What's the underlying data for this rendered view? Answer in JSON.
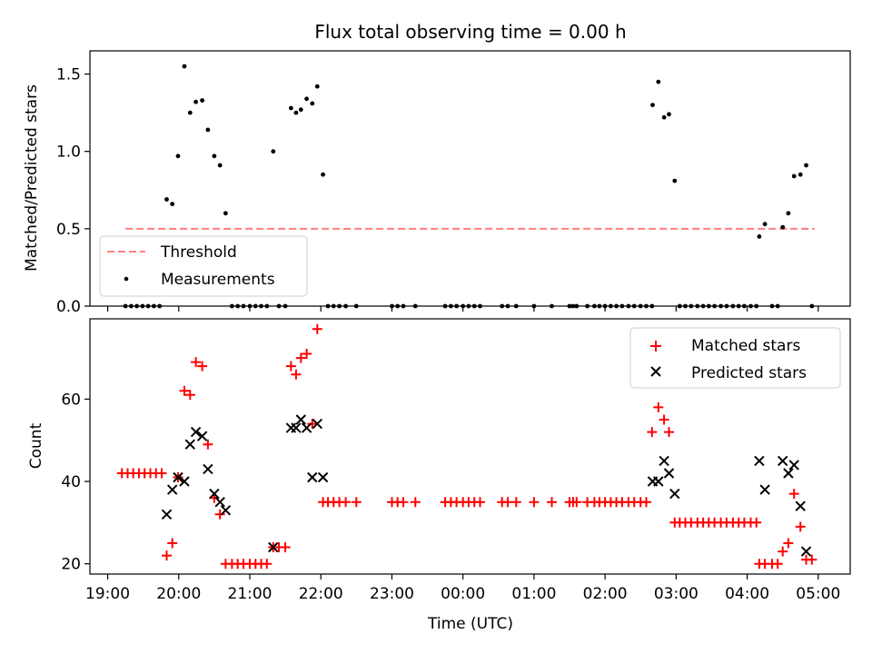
{
  "chart_data": [
    {
      "type": "scatter",
      "title": "Flux total observing time = 0.00 h",
      "xlabel": "",
      "ylabel": "Matched/Predicted stars",
      "x_unit": "hours since 19:00 UTC",
      "xlim": [
        -0.25,
        10.45
      ],
      "ylim": [
        0,
        1.65
      ],
      "yticks": [
        0.0,
        0.5,
        1.0,
        1.5
      ],
      "ytick_labels": [
        "0.0",
        "0.5",
        "1.0",
        "1.5"
      ],
      "threshold": {
        "name": "Threshold",
        "value": 0.5,
        "x_range": [
          0.25,
          9.95
        ],
        "color": "#ff7f7f",
        "style": "dashed"
      },
      "series": [
        {
          "name": "Measurements",
          "color": "#000000",
          "marker": "dot",
          "points": [
            [
              0.25,
              0
            ],
            [
              0.33,
              0
            ],
            [
              0.41,
              0
            ],
            [
              0.49,
              0
            ],
            [
              0.57,
              0
            ],
            [
              0.65,
              0
            ],
            [
              0.73,
              0
            ],
            [
              0.83,
              0.69
            ],
            [
              0.91,
              0.66
            ],
            [
              0.99,
              0.97
            ],
            [
              1.08,
              1.55
            ],
            [
              1.16,
              1.25
            ],
            [
              1.24,
              1.32
            ],
            [
              1.33,
              1.33
            ],
            [
              1.41,
              1.14
            ],
            [
              1.5,
              0.97
            ],
            [
              1.58,
              0.91
            ],
            [
              1.66,
              0.6
            ],
            [
              1.75,
              0
            ],
            [
              1.83,
              0
            ],
            [
              1.91,
              0
            ],
            [
              2.0,
              0
            ],
            [
              2.08,
              0
            ],
            [
              2.16,
              0
            ],
            [
              2.24,
              0
            ],
            [
              2.33,
              1.0
            ],
            [
              2.41,
              0
            ],
            [
              2.5,
              0
            ],
            [
              2.58,
              1.28
            ],
            [
              2.65,
              1.25
            ],
            [
              2.72,
              1.27
            ],
            [
              2.8,
              1.34
            ],
            [
              2.88,
              1.31
            ],
            [
              2.95,
              1.42
            ],
            [
              3.03,
              0.85
            ],
            [
              3.1,
              0
            ],
            [
              3.18,
              0
            ],
            [
              3.26,
              0
            ],
            [
              3.35,
              0
            ],
            [
              3.5,
              0
            ],
            [
              4.0,
              0
            ],
            [
              4.08,
              0
            ],
            [
              4.16,
              0
            ],
            [
              4.33,
              0
            ],
            [
              4.75,
              0
            ],
            [
              4.83,
              0
            ],
            [
              4.91,
              0
            ],
            [
              5.0,
              0
            ],
            [
              5.08,
              0
            ],
            [
              5.16,
              0
            ],
            [
              5.24,
              0
            ],
            [
              5.55,
              0
            ],
            [
              5.63,
              0
            ],
            [
              5.75,
              0
            ],
            [
              6.0,
              0
            ],
            [
              6.25,
              0
            ],
            [
              6.5,
              0
            ],
            [
              6.55,
              0
            ],
            [
              6.6,
              0
            ],
            [
              6.75,
              0
            ],
            [
              6.85,
              0
            ],
            [
              6.92,
              0
            ],
            [
              7.0,
              0
            ],
            [
              7.08,
              0
            ],
            [
              7.16,
              0
            ],
            [
              7.24,
              0
            ],
            [
              7.33,
              0
            ],
            [
              7.41,
              0
            ],
            [
              7.5,
              0
            ],
            [
              7.58,
              0
            ],
            [
              7.66,
              0
            ],
            [
              7.67,
              1.3
            ],
            [
              7.75,
              1.45
            ],
            [
              7.83,
              1.22
            ],
            [
              7.9,
              1.24
            ],
            [
              7.98,
              0.81
            ],
            [
              8.05,
              0
            ],
            [
              8.13,
              0
            ],
            [
              8.21,
              0
            ],
            [
              8.3,
              0
            ],
            [
              8.38,
              0
            ],
            [
              8.46,
              0
            ],
            [
              8.54,
              0
            ],
            [
              8.63,
              0
            ],
            [
              8.71,
              0
            ],
            [
              8.8,
              0
            ],
            [
              8.88,
              0
            ],
            [
              8.96,
              0
            ],
            [
              9.05,
              0
            ],
            [
              9.13,
              0
            ],
            [
              9.17,
              0.45
            ],
            [
              9.25,
              0.53
            ],
            [
              9.35,
              0
            ],
            [
              9.43,
              0
            ],
            [
              9.5,
              0.51
            ],
            [
              9.58,
              0.6
            ],
            [
              9.66,
              0.84
            ],
            [
              9.75,
              0.85
            ],
            [
              9.83,
              0.91
            ],
            [
              9.91,
              0
            ]
          ]
        }
      ],
      "legend": {
        "location": "lower-left",
        "entries": [
          "Threshold",
          "Measurements"
        ]
      }
    },
    {
      "type": "scatter",
      "title": "",
      "xlabel": "Time (UTC)",
      "ylabel": "Count",
      "x_unit": "hours since 19:00 UTC",
      "xlim": [
        -0.25,
        10.45
      ],
      "ylim": [
        17.5,
        79.5
      ],
      "yticks": [
        20,
        40,
        60
      ],
      "ytick_labels": [
        "20",
        "40",
        "60"
      ],
      "xticks": [
        0,
        1,
        2,
        3,
        4,
        5,
        6,
        7,
        8,
        9,
        10
      ],
      "xtick_labels": [
        "19:00",
        "20:00",
        "21:00",
        "22:00",
        "23:00",
        "00:00",
        "01:00",
        "02:00",
        "03:00",
        "04:00",
        "05:00"
      ],
      "series": [
        {
          "name": "Matched stars",
          "color": "#ff0000",
          "marker": "plus",
          "points": [
            [
              0.2,
              42
            ],
            [
              0.28,
              42
            ],
            [
              0.36,
              42
            ],
            [
              0.44,
              42
            ],
            [
              0.52,
              42
            ],
            [
              0.6,
              42
            ],
            [
              0.68,
              42
            ],
            [
              0.76,
              42
            ],
            [
              0.83,
              22
            ],
            [
              0.91,
              25
            ],
            [
              0.99,
              41
            ],
            [
              1.08,
              62
            ],
            [
              1.16,
              61
            ],
            [
              1.24,
              69
            ],
            [
              1.33,
              68
            ],
            [
              1.41,
              49
            ],
            [
              1.5,
              36
            ],
            [
              1.58,
              32
            ],
            [
              1.66,
              20
            ],
            [
              1.75,
              20
            ],
            [
              1.83,
              20
            ],
            [
              1.91,
              20
            ],
            [
              2.0,
              20
            ],
            [
              2.08,
              20
            ],
            [
              2.16,
              20
            ],
            [
              2.24,
              20
            ],
            [
              2.33,
              24
            ],
            [
              2.41,
              24
            ],
            [
              2.5,
              24
            ],
            [
              2.58,
              68
            ],
            [
              2.65,
              66
            ],
            [
              2.72,
              70
            ],
            [
              2.8,
              71
            ],
            [
              2.88,
              54
            ],
            [
              2.95,
              77
            ],
            [
              3.03,
              35
            ],
            [
              3.1,
              35
            ],
            [
              3.18,
              35
            ],
            [
              3.26,
              35
            ],
            [
              3.35,
              35
            ],
            [
              3.5,
              35
            ],
            [
              4.0,
              35
            ],
            [
              4.08,
              35
            ],
            [
              4.16,
              35
            ],
            [
              4.33,
              35
            ],
            [
              4.75,
              35
            ],
            [
              4.83,
              35
            ],
            [
              4.91,
              35
            ],
            [
              5.0,
              35
            ],
            [
              5.08,
              35
            ],
            [
              5.16,
              35
            ],
            [
              5.24,
              35
            ],
            [
              5.55,
              35
            ],
            [
              5.63,
              35
            ],
            [
              5.75,
              35
            ],
            [
              6.0,
              35
            ],
            [
              6.25,
              35
            ],
            [
              6.5,
              35
            ],
            [
              6.55,
              35
            ],
            [
              6.6,
              35
            ],
            [
              6.75,
              35
            ],
            [
              6.85,
              35
            ],
            [
              6.92,
              35
            ],
            [
              7.0,
              35
            ],
            [
              7.08,
              35
            ],
            [
              7.16,
              35
            ],
            [
              7.24,
              35
            ],
            [
              7.33,
              35
            ],
            [
              7.41,
              35
            ],
            [
              7.5,
              35
            ],
            [
              7.58,
              35
            ],
            [
              7.66,
              52
            ],
            [
              7.75,
              58
            ],
            [
              7.83,
              55
            ],
            [
              7.9,
              52
            ],
            [
              7.98,
              30
            ],
            [
              8.05,
              30
            ],
            [
              8.13,
              30
            ],
            [
              8.21,
              30
            ],
            [
              8.3,
              30
            ],
            [
              8.38,
              30
            ],
            [
              8.46,
              30
            ],
            [
              8.54,
              30
            ],
            [
              8.63,
              30
            ],
            [
              8.71,
              30
            ],
            [
              8.8,
              30
            ],
            [
              8.88,
              30
            ],
            [
              8.96,
              30
            ],
            [
              9.05,
              30
            ],
            [
              9.13,
              30
            ],
            [
              9.17,
              20
            ],
            [
              9.25,
              20
            ],
            [
              9.35,
              20
            ],
            [
              9.43,
              20
            ],
            [
              9.5,
              23
            ],
            [
              9.58,
              25
            ],
            [
              9.66,
              37
            ],
            [
              9.75,
              29
            ],
            [
              9.83,
              21
            ],
            [
              9.91,
              21
            ]
          ]
        },
        {
          "name": "Predicted stars",
          "color": "#000000",
          "marker": "x",
          "points": [
            [
              0.83,
              32
            ],
            [
              0.91,
              38
            ],
            [
              0.99,
              41
            ],
            [
              1.08,
              40
            ],
            [
              1.16,
              49
            ],
            [
              1.24,
              52
            ],
            [
              1.33,
              51
            ],
            [
              1.41,
              43
            ],
            [
              1.5,
              37
            ],
            [
              1.58,
              35
            ],
            [
              1.66,
              33
            ],
            [
              2.33,
              24
            ],
            [
              2.58,
              53
            ],
            [
              2.65,
              53
            ],
            [
              2.72,
              55
            ],
            [
              2.8,
              53
            ],
            [
              2.88,
              41
            ],
            [
              2.95,
              54
            ],
            [
              3.03,
              41
            ],
            [
              7.67,
              40
            ],
            [
              7.75,
              40
            ],
            [
              7.83,
              45
            ],
            [
              7.9,
              42
            ],
            [
              7.98,
              37
            ],
            [
              9.17,
              45
            ],
            [
              9.25,
              38
            ],
            [
              9.5,
              45
            ],
            [
              9.58,
              42
            ],
            [
              9.66,
              44
            ],
            [
              9.75,
              34
            ],
            [
              9.83,
              23
            ]
          ]
        }
      ],
      "legend": {
        "location": "upper-right",
        "entries": [
          "Matched stars",
          "Predicted stars"
        ]
      }
    }
  ]
}
